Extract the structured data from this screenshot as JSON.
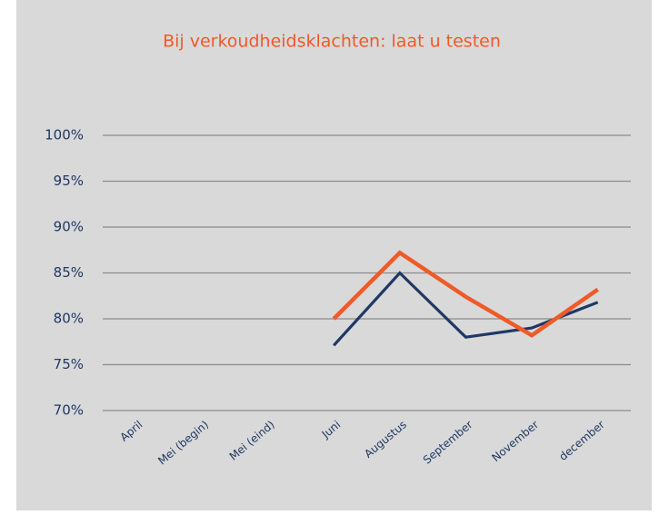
{
  "chart_data": {
    "type": "line",
    "title": "Bij verkoudheidsklachten: laat u testen",
    "categories": [
      "April",
      "Mei (begin)",
      "Mei (eind)",
      "Juni",
      "Augustus",
      "September",
      "November",
      "december"
    ],
    "series": [
      {
        "color": "#1f3864",
        "values": [
          null,
          null,
          null,
          77.1,
          85,
          78,
          79,
          81.8
        ]
      },
      {
        "color": "#f05a28",
        "values": [
          null,
          null,
          null,
          80,
          87.2,
          82.4,
          78.2,
          83.2
        ]
      }
    ],
    "ylim": [
      70,
      100
    ],
    "yticks": [
      {
        "value": 70,
        "label": "70%"
      },
      {
        "value": 75,
        "label": "75%"
      },
      {
        "value": 80,
        "label": "80%"
      },
      {
        "value": 85,
        "label": "85%"
      },
      {
        "value": 90,
        "label": "90%"
      },
      {
        "value": 95,
        "label": "95%"
      },
      {
        "value": 100,
        "label": "100%"
      }
    ],
    "grid": true
  }
}
